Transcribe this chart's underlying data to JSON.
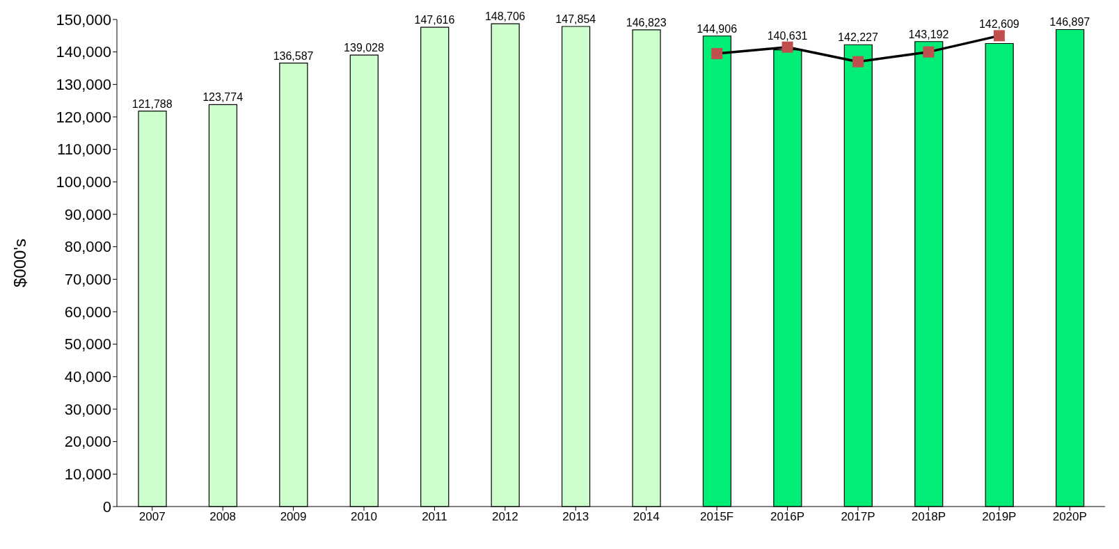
{
  "chart_data": {
    "type": "bar",
    "ylabel": "$000's",
    "categories": [
      "2007",
      "2008",
      "2009",
      "2010",
      "2011",
      "2012",
      "2013",
      "2014",
      "2015F",
      "2016P",
      "2017P",
      "2018P",
      "2019P",
      "2020P"
    ],
    "series": [
      {
        "values": [
          121788,
          123774,
          136587,
          139028,
          147616,
          148706,
          147854,
          146823,
          144906,
          140631,
          142227,
          143192,
          142609,
          146897
        ],
        "colors": [
          "#ccffcc",
          "#ccffcc",
          "#ccffcc",
          "#ccffcc",
          "#ccffcc",
          "#ccffcc",
          "#ccffcc",
          "#ccffcc",
          "#00ee76",
          "#00ee76",
          "#00ee76",
          "#00ee76",
          "#00ee76",
          "#00ee76"
        ],
        "value_labels": [
          "121,788",
          "123,774",
          "136,587",
          "139,028",
          "147,616",
          "148,706",
          "147,854",
          "146,823",
          "144,906",
          "140,631",
          "142,227",
          "143,192",
          "142,609",
          "146,897"
        ]
      },
      {
        "type": "line",
        "color": "#000000",
        "colors": [
          "#c0504d",
          "#c0504d",
          "#c0504d",
          "#c0504d",
          "#c0504d",
          "#c0504d",
          "#c0504d",
          "#c0504d",
          "#c0504d",
          "#c0504d",
          "#c0504d",
          "#c0504d",
          "#c0504d",
          "#c0504d"
        ],
        "values": [
          null,
          null,
          null,
          null,
          null,
          null,
          null,
          null,
          139500,
          141500,
          137000,
          140000,
          145000,
          null
        ]
      }
    ],
    "ylim": [
      0,
      150000
    ],
    "yticks": [
      0,
      {
        "value": 10000,
        "label": "10,000"
      },
      {
        "value": 20000,
        "label": "20,000"
      },
      {
        "value": 30000,
        "label": "30,000"
      },
      {
        "value": 40000,
        "label": "40,000"
      },
      {
        "value": 50000,
        "label": "50,000"
      },
      {
        "value": 60000,
        "label": "60,000"
      },
      {
        "value": 70000,
        "label": "70,000"
      },
      {
        "value": 80000,
        "label": "80,000"
      },
      {
        "value": 90000,
        "label": "90,000"
      },
      {
        "value": 100000,
        "label": "100,000"
      },
      {
        "value": 110000,
        "label": "110,000"
      },
      {
        "value": 120000,
        "label": "120,000"
      },
      {
        "value": 130000,
        "label": "130,000"
      },
      {
        "value": 140000,
        "label": "140,000"
      },
      {
        "value": 150000,
        "label": "150,000"
      }
    ],
    "grid": false,
    "legend": false,
    "marker": "square",
    "line_style": "solid"
  }
}
